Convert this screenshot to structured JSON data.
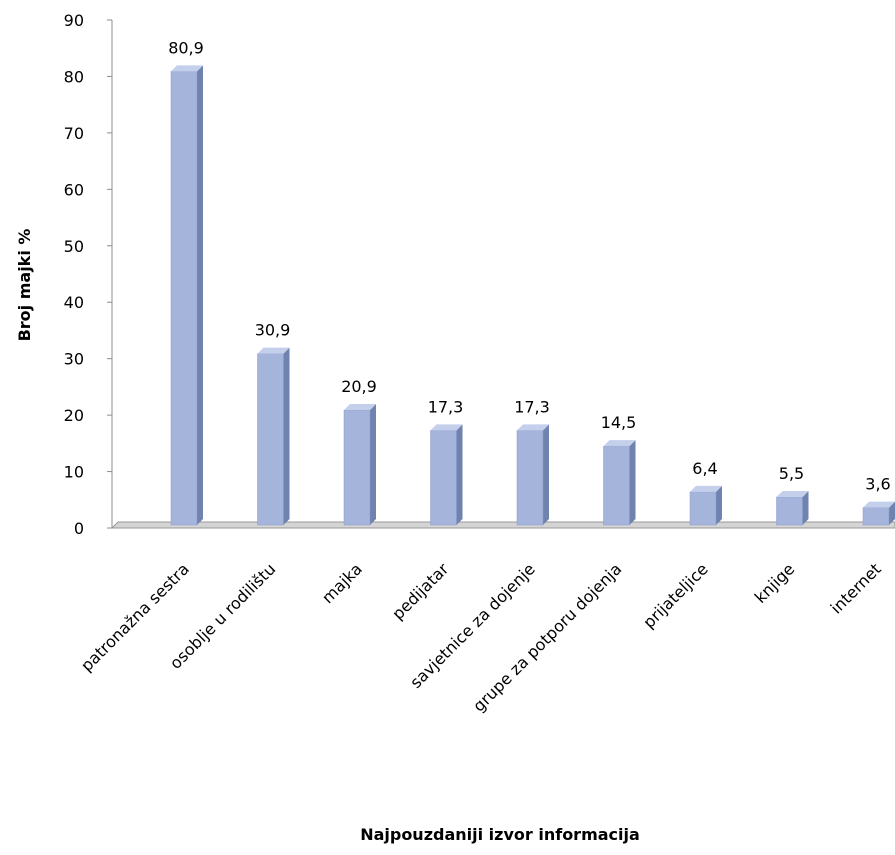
{
  "chart_data": {
    "type": "bar",
    "categories": [
      "patronažna sestra",
      "osoblje u rodilištu",
      "majka",
      "pedijatar",
      "savjetnice za dojenje",
      "grupe za potporu dojenja",
      "prijateljice",
      "knjige",
      "internet"
    ],
    "values": [
      80.9,
      30.9,
      20.9,
      17.3,
      17.3,
      14.5,
      6.4,
      5.5,
      3.6
    ],
    "data_labels": [
      "80,9",
      "30,9",
      "20,9",
      "17,3",
      "17,3",
      "14,5",
      "6,4",
      "5,5",
      "3,6"
    ],
    "y_ticks": [
      "0",
      "10",
      "20",
      "30",
      "40",
      "50",
      "60",
      "70",
      "80",
      "90"
    ],
    "ylim": [
      0,
      90
    ],
    "xlabel": "Najpouzdaniji izvor informacija",
    "ylabel": "Broj majki %",
    "grid": false,
    "legend": "none",
    "bar_color": "#a4b4db",
    "bar_side_color": "#7082ae",
    "bar_top_color": "#c3cfeb",
    "floor_color": "#d4d4d4"
  }
}
